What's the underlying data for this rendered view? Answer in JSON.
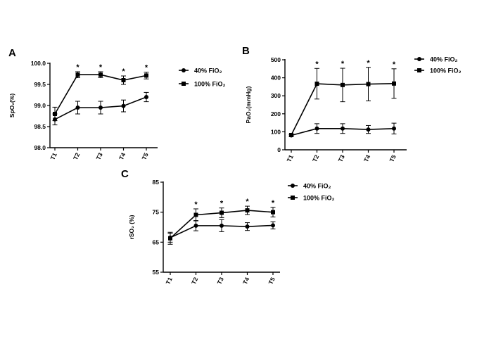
{
  "chart_data": [
    {
      "type": "line",
      "panel": "A",
      "ylabel": "SpO₂(%)",
      "categories": [
        "T1",
        "T2",
        "T3",
        "T4",
        "T5"
      ],
      "ylim": [
        98.0,
        100.0
      ],
      "yticks": [
        98.0,
        98.5,
        99.0,
        99.5,
        100.0
      ],
      "ytick_labels": [
        "98.0",
        "98.5",
        "99.0",
        "99.5",
        "100.0"
      ],
      "legend_position": "right",
      "series": [
        {
          "name": "40% FiO₂",
          "marker": "circle",
          "values": [
            98.67,
            98.95,
            98.95,
            98.99,
            99.2
          ],
          "errors": [
            0.13,
            0.15,
            0.15,
            0.14,
            0.11
          ]
        },
        {
          "name": "100% FiO₂",
          "marker": "square",
          "values": [
            98.8,
            99.73,
            99.73,
            99.6,
            99.71
          ],
          "errors": [
            0.16,
            0.07,
            0.07,
            0.1,
            0.08
          ]
        }
      ],
      "significance": [
        "",
        "*",
        "*",
        "*",
        "*"
      ]
    },
    {
      "type": "line",
      "panel": "B",
      "ylabel": "PaO₂(mmHg)",
      "categories": [
        "T1",
        "T2",
        "T3",
        "T4",
        "T5"
      ],
      "ylim": [
        0,
        500
      ],
      "yticks": [
        0,
        100,
        200,
        300,
        400,
        500
      ],
      "ytick_labels": [
        "0",
        "100",
        "200",
        "300",
        "400",
        "500"
      ],
      "legend_position": "right",
      "series": [
        {
          "name": "40% FiO₂",
          "marker": "circle",
          "values": [
            80,
            118,
            118,
            113,
            118
          ],
          "errors": [
            5,
            27,
            27,
            22,
            30
          ]
        },
        {
          "name": "100% FiO₂",
          "marker": "square",
          "values": [
            82,
            367,
            360,
            365,
            368
          ],
          "errors": [
            5,
            85,
            93,
            93,
            82
          ]
        }
      ],
      "significance": [
        "",
        "*",
        "*",
        "*",
        "*"
      ]
    },
    {
      "type": "line",
      "panel": "C",
      "ylabel": "rSO₂ (%)",
      "categories": [
        "T1",
        "T2",
        "T3",
        "T4",
        "T5"
      ],
      "ylim": [
        55,
        85
      ],
      "yticks": [
        55,
        65,
        75,
        85
      ],
      "ytick_labels": [
        "55",
        "65",
        "75",
        "85"
      ],
      "legend_position": "right",
      "series": [
        {
          "name": "40% FiO₂",
          "marker": "circle",
          "values": [
            66.5,
            70.5,
            70.5,
            70.2,
            70.6
          ],
          "errors": [
            1.5,
            1.7,
            2.0,
            1.3,
            1.2
          ]
        },
        {
          "name": "100% FiO₂",
          "marker": "square",
          "values": [
            66.3,
            74.1,
            74.8,
            75.6,
            75.0
          ],
          "errors": [
            2.0,
            2.0,
            1.6,
            1.4,
            1.6
          ]
        }
      ],
      "significance": [
        "",
        "*",
        "*",
        "*",
        "*"
      ]
    }
  ]
}
